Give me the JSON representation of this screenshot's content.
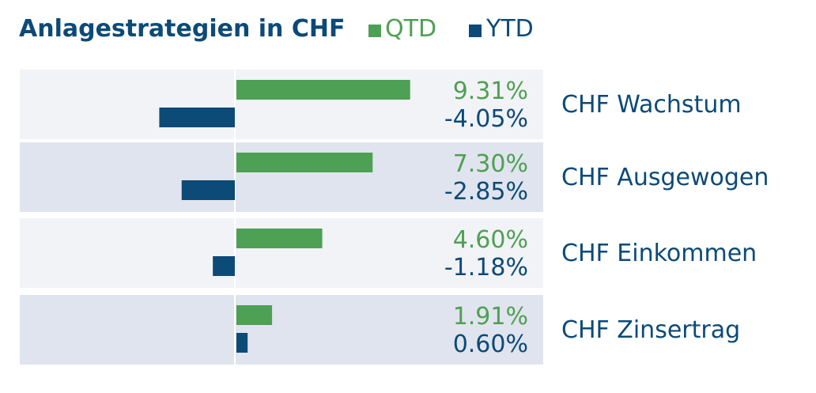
{
  "chart_data": {
    "type": "bar",
    "title": "Anlagestrategien in CHF",
    "categories": [
      "CHF Wachstum",
      "CHF Ausgewogen",
      "CHF Einkommen",
      "CHF Zinsertrag"
    ],
    "series": [
      {
        "name": "QTD",
        "values": [
          9.31,
          7.3,
          4.6,
          1.91
        ],
        "labels": [
          "9.31%",
          "7.30%",
          "4.60%",
          "1.91%"
        ],
        "color": "#4ea054"
      },
      {
        "name": "YTD",
        "values": [
          -4.05,
          -2.85,
          -1.18,
          0.6
        ],
        "labels": [
          "-4.05%",
          "-2.85%",
          "-1.18%",
          "0.60%"
        ],
        "color": "#0c4a78"
      }
    ],
    "row_colors": [
      "#f2f3f7",
      "#e0e4ee",
      "#f2f3f7",
      "#e0e4ee"
    ],
    "legend_position": "top",
    "grid": false
  }
}
